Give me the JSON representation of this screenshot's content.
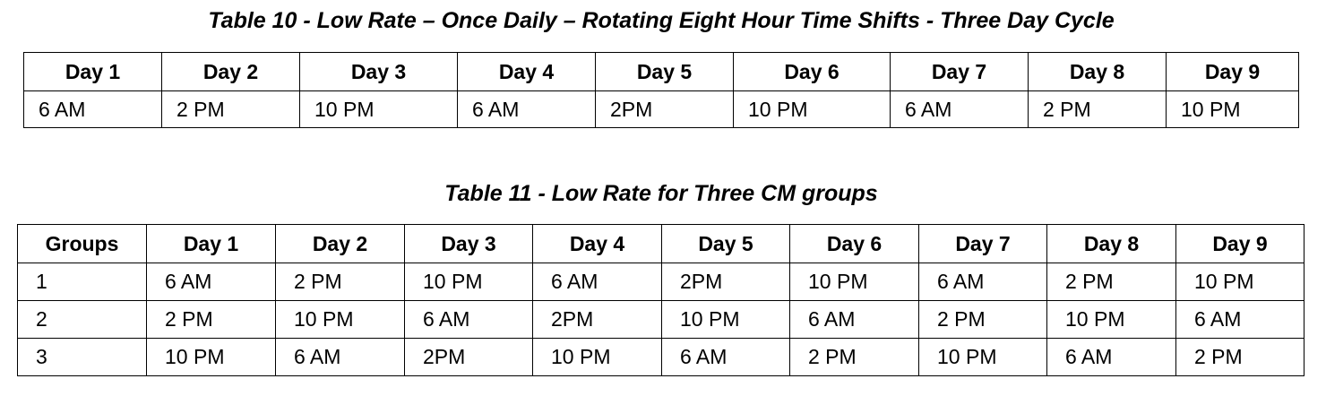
{
  "table10": {
    "caption": "Table 10 - Low Rate – Once Daily – Rotating Eight Hour Time Shifts - Three Day Cycle",
    "headers": [
      "Day 1",
      "Day 2",
      "Day 3",
      "Day 4",
      "Day 5",
      "Day 6",
      "Day 7",
      "Day 8",
      "Day 9"
    ],
    "rows": [
      [
        "6 AM",
        "2 PM",
        "10 PM",
        "6 AM",
        "2PM",
        "10 PM",
        "6 AM",
        "2 PM",
        "10 PM"
      ]
    ]
  },
  "table11": {
    "caption": "Table 11 - Low Rate for Three CM groups",
    "headers": [
      "Groups",
      "Day 1",
      "Day 2",
      "Day 3",
      "Day 4",
      "Day 5",
      "Day 6",
      "Day 7",
      "Day 8",
      "Day 9"
    ],
    "rows": [
      [
        "1",
        "6 AM",
        "2 PM",
        "10 PM",
        "6 AM",
        "2PM",
        "10 PM",
        "6 AM",
        "2 PM",
        "10 PM"
      ],
      [
        "2",
        "2 PM",
        "10 PM",
        "6 AM",
        "2PM",
        "10 PM",
        "6 AM",
        "2 PM",
        "10 PM",
        "6 AM"
      ],
      [
        "3",
        "10 PM",
        "6 AM",
        "2PM",
        "10 PM",
        "6 AM",
        "2 PM",
        "10 PM",
        "6 AM",
        "2 PM"
      ]
    ]
  }
}
